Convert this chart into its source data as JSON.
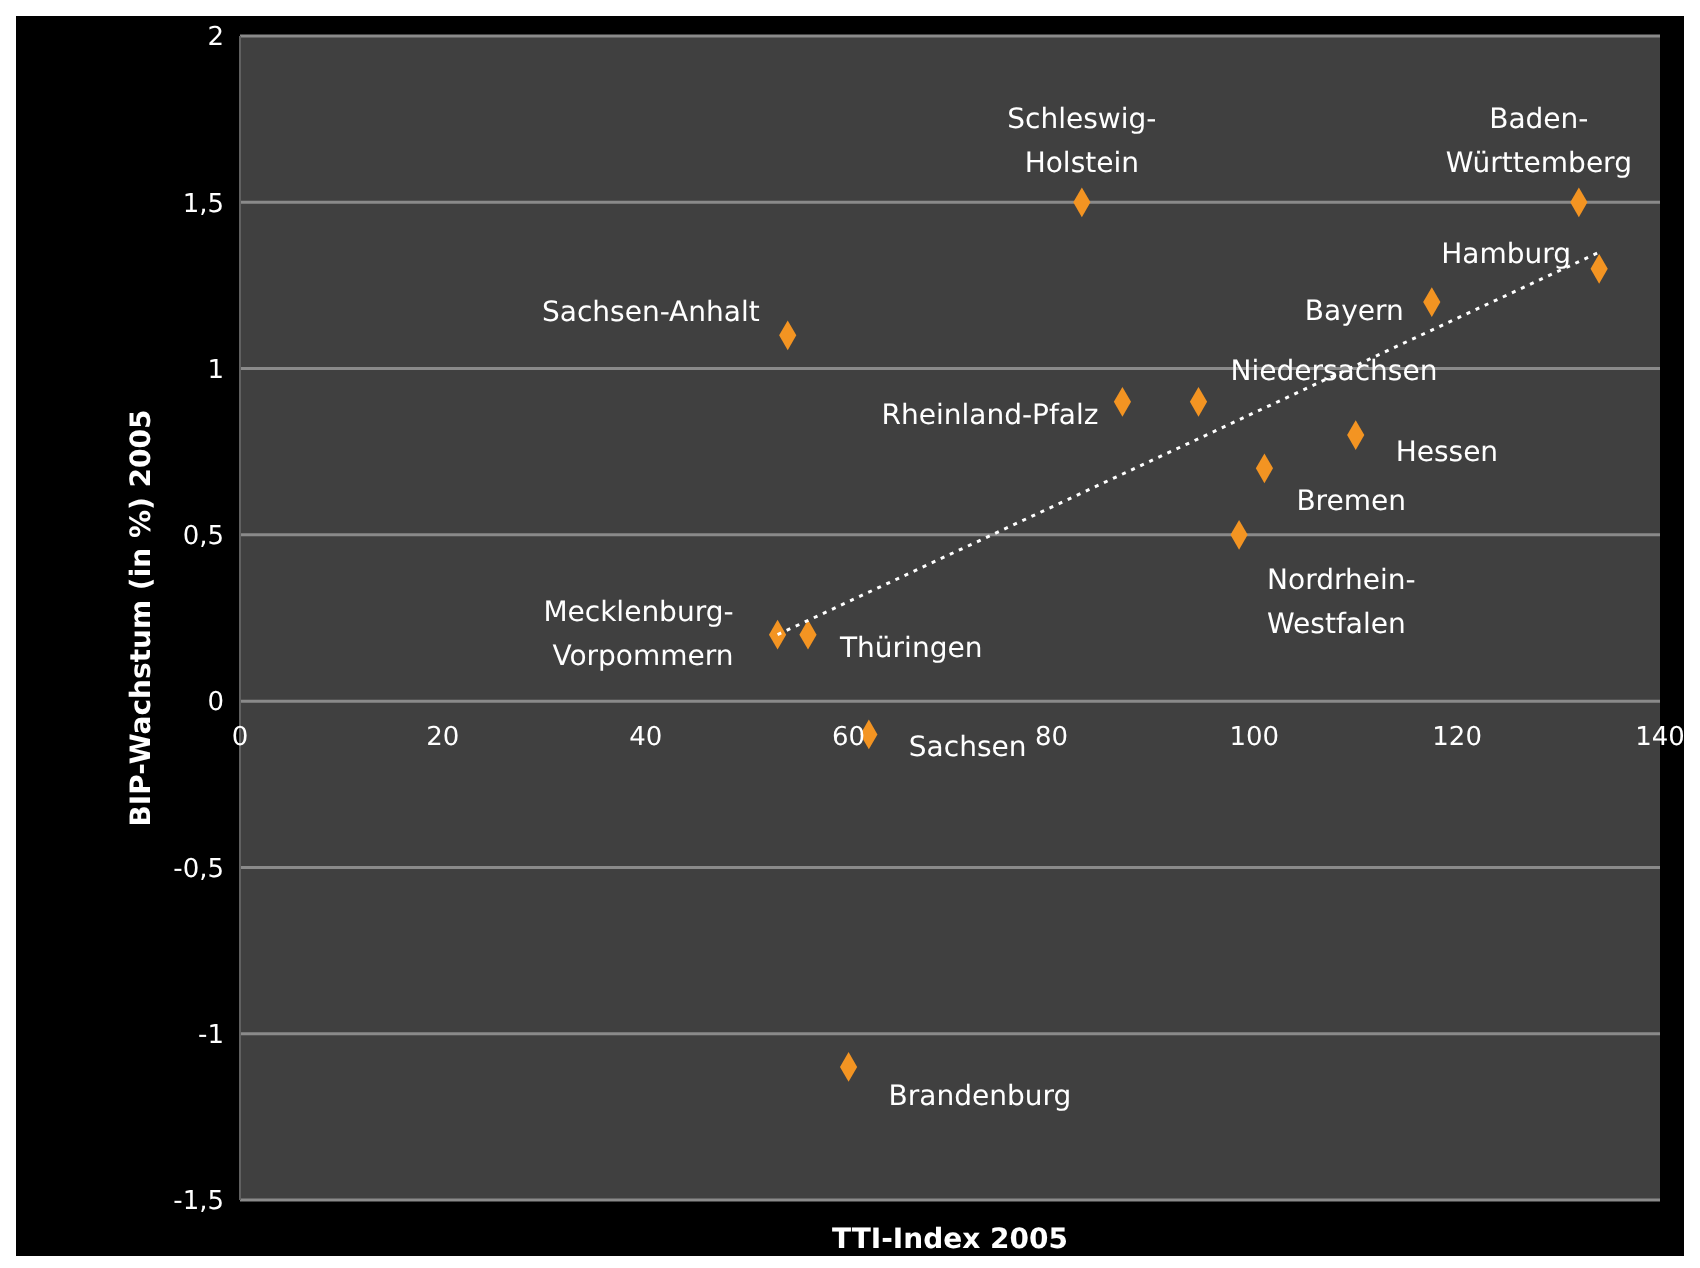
{
  "chart_data": {
    "type": "scatter",
    "xlabel": "TTI-Index 2005",
    "ylabel": "BIP-Wachstum (in %) 2005",
    "xlim": [
      0,
      140
    ],
    "xticks": [
      0,
      20,
      40,
      60,
      80,
      100,
      120,
      140
    ],
    "ylim": [
      -1.5,
      2
    ],
    "yticks": [
      {
        "value": -1.5,
        "label": "-1,5"
      },
      -1,
      {
        "value": -0.5,
        "label": "-0,5"
      },
      0,
      {
        "value": 0.5,
        "label": "0,5"
      },
      1,
      {
        "value": 1.5,
        "label": "1,5"
      },
      2
    ],
    "grid": "y",
    "legend": false,
    "series": [
      {
        "type": "scatter",
        "color": "#f39422",
        "marker": "diamond",
        "x": [
          83,
          132,
          134,
          117.5,
          54,
          87,
          94.5,
          110,
          101,
          98.5,
          53,
          56,
          62,
          60
        ],
        "values": [
          1.5,
          1.5,
          1.3,
          1.2,
          1.1,
          0.9,
          0.9,
          0.8,
          0.7,
          0.5,
          0.2,
          0.2,
          -0.1,
          -1.1
        ]
      },
      {
        "type": "line",
        "color": "#ffffff",
        "marker": "none",
        "line_style": "dotted",
        "x": [
          53,
          134
        ],
        "values": [
          0.2,
          1.35
        ]
      }
    ],
    "annotations": [
      {
        "text": "Schleswig-\nHolstein",
        "x": 83,
        "y": 1.5
      },
      {
        "text": "Baden-\nWürttemberg",
        "x": 132,
        "y": 1.5
      },
      {
        "text": "Hamburg",
        "x": 134,
        "y": 1.3
      },
      {
        "text": "Bayern",
        "x": 117.5,
        "y": 1.2
      },
      {
        "text": "Sachsen-Anhalt",
        "x": 54,
        "y": 1.1
      },
      {
        "text": "Rheinland-Pfalz",
        "x": 87,
        "y": 0.9
      },
      {
        "text": "Niedersachsen",
        "x": 94.5,
        "y": 0.9
      },
      {
        "text": "Hessen",
        "x": 110,
        "y": 0.8
      },
      {
        "text": "Bremen",
        "x": 101,
        "y": 0.7
      },
      {
        "text": "Nordrhein-\nWestfalen",
        "x": 98.5,
        "y": 0.5
      },
      {
        "text": "Mecklenburg-\nVorpommern",
        "x": 53,
        "y": 0.2
      },
      {
        "text": "Thüringen",
        "x": 56,
        "y": 0.2
      },
      {
        "text": "Sachsen",
        "x": 62,
        "y": -0.1
      },
      {
        "text": "Brandenburg",
        "x": 60,
        "y": -1.1
      }
    ]
  }
}
